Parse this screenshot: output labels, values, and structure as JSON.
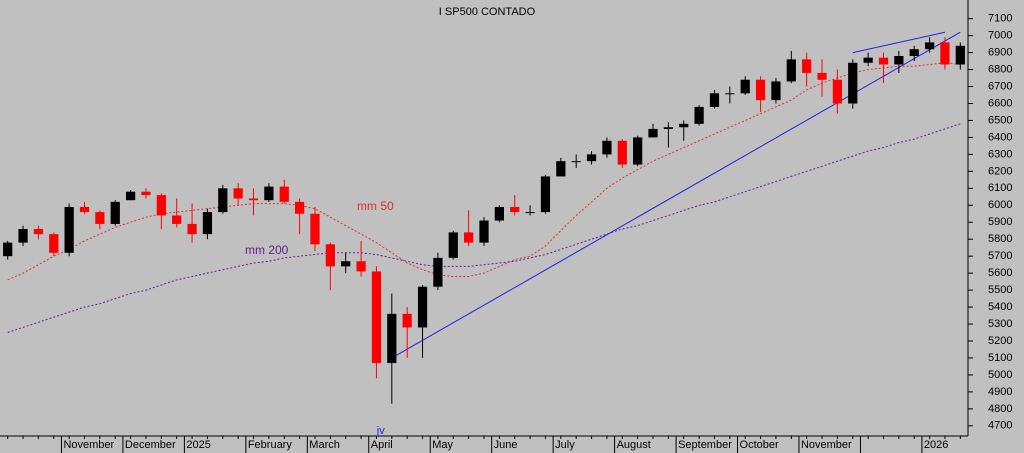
{
  "chart_data": {
    "type": "candlestick",
    "title": "I SP500 CONTADO",
    "ylim": [
      4640,
      7210
    ],
    "yticks": [
      4700,
      4800,
      4900,
      5000,
      5100,
      5200,
      5300,
      5400,
      5500,
      5600,
      5700,
      5800,
      5900,
      6000,
      6100,
      6200,
      6300,
      6400,
      6500,
      6600,
      6700,
      6800,
      6900,
      7000,
      7100
    ],
    "up_color": "#000000",
    "down_color": "#ff0000",
    "months": [
      {
        "label": null,
        "candles": [
          [
            5700,
            5790,
            5680,
            5780
          ],
          [
            5780,
            5880,
            5760,
            5860
          ],
          [
            5860,
            5880,
            5800,
            5830
          ],
          [
            5830,
            5840,
            5700,
            5720
          ]
        ]
      },
      {
        "label": "November",
        "candles": [
          [
            5720,
            6010,
            5700,
            5990
          ],
          [
            5990,
            6020,
            5950,
            5960
          ],
          [
            5960,
            5970,
            5860,
            5890
          ],
          [
            5890,
            6030,
            5880,
            6020
          ]
        ]
      },
      {
        "label": "December",
        "candles": [
          [
            6030,
            6090,
            6030,
            6080
          ],
          [
            6080,
            6100,
            6040,
            6060
          ],
          [
            6060,
            6070,
            5860,
            5940
          ],
          [
            5940,
            6040,
            5870,
            5890
          ]
        ]
      },
      {
        "label": "2025",
        "candles": [
          [
            5890,
            6010,
            5780,
            5830
          ],
          [
            5830,
            5980,
            5800,
            5960
          ],
          [
            5960,
            6120,
            5950,
            6100
          ],
          [
            6100,
            6130,
            6000,
            6040
          ]
        ]
      },
      {
        "label": "February",
        "candles": [
          [
            6040,
            6100,
            5940,
            6030
          ],
          [
            6030,
            6130,
            6020,
            6110
          ],
          [
            6110,
            6150,
            6010,
            6020
          ],
          [
            6020,
            6040,
            5830,
            5950
          ]
        ]
      },
      {
        "label": "March",
        "candles": [
          [
            5950,
            5990,
            5730,
            5770
          ],
          [
            5770,
            5780,
            5500,
            5640
          ],
          [
            5640,
            5720,
            5600,
            5670
          ],
          [
            5670,
            5790,
            5580,
            5610
          ]
        ]
      },
      {
        "label": "April",
        "candles": [
          [
            5610,
            5640,
            4980,
            5070
          ],
          [
            5070,
            5480,
            4830,
            5360
          ],
          [
            5360,
            5400,
            5100,
            5280
          ],
          [
            5280,
            5530,
            5100,
            5520
          ]
        ]
      },
      {
        "label": "May",
        "candles": [
          [
            5520,
            5720,
            5500,
            5690
          ],
          [
            5690,
            5850,
            5680,
            5840
          ],
          [
            5840,
            5970,
            5760,
            5780
          ],
          [
            5780,
            5930,
            5760,
            5910
          ]
        ]
      },
      {
        "label": "June",
        "candles": [
          [
            5910,
            6000,
            5900,
            5990
          ],
          [
            5990,
            6060,
            5940,
            5960
          ],
          [
            5960,
            6000,
            5940,
            5960
          ],
          [
            5960,
            6180,
            5950,
            6170
          ]
        ]
      },
      {
        "label": "July",
        "candles": [
          [
            6170,
            6280,
            6170,
            6260
          ],
          [
            6260,
            6300,
            6220,
            6260
          ],
          [
            6260,
            6320,
            6240,
            6300
          ],
          [
            6300,
            6400,
            6280,
            6380
          ]
        ]
      },
      {
        "label": "August",
        "candles": [
          [
            6380,
            6390,
            6220,
            6240
          ],
          [
            6240,
            6410,
            6230,
            6400
          ],
          [
            6400,
            6480,
            6400,
            6450
          ],
          [
            6450,
            6490,
            6340,
            6460
          ]
        ]
      },
      {
        "label": "September",
        "candles": [
          [
            6460,
            6500,
            6380,
            6480
          ],
          [
            6480,
            6590,
            6470,
            6580
          ],
          [
            6580,
            6680,
            6570,
            6660
          ],
          [
            6660,
            6700,
            6600,
            6660
          ]
        ]
      },
      {
        "label": "October",
        "candles": [
          [
            6660,
            6760,
            6650,
            6740
          ],
          [
            6740,
            6760,
            6550,
            6620
          ],
          [
            6620,
            6750,
            6600,
            6730
          ],
          [
            6730,
            6910,
            6720,
            6860
          ]
        ]
      },
      {
        "label": "November",
        "candles": [
          [
            6860,
            6900,
            6700,
            6780
          ],
          [
            6780,
            6860,
            6640,
            6740
          ],
          [
            6740,
            6800,
            6540,
            6600
          ],
          [
            6600,
            6860,
            6570,
            6840
          ]
        ]
      },
      {
        "label": null,
        "candles": [
          [
            6840,
            6900,
            6820,
            6870
          ],
          [
            6870,
            6900,
            6720,
            6830
          ],
          [
            6830,
            6910,
            6780,
            6880
          ],
          [
            6880,
            6940,
            6850,
            6920
          ]
        ]
      },
      {
        "label": "2026",
        "candles": [
          [
            6920,
            6990,
            6900,
            6960
          ],
          [
            6960,
            6990,
            6800,
            6830
          ],
          [
            6830,
            6960,
            6800,
            6940
          ]
        ]
      }
    ],
    "averages": [
      {
        "name": "mm 50",
        "color": "#e03030",
        "values": [
          5560,
          5600,
          5650,
          5700,
          5740,
          5790,
          5830,
          5870,
          5900,
          5930,
          5950,
          5960,
          5970,
          5980,
          5990,
          6000,
          6010,
          6010,
          6010,
          6000,
          5980,
          5930,
          5880,
          5830,
          5780,
          5720,
          5660,
          5620,
          5590,
          5580,
          5580,
          5600,
          5640,
          5680,
          5700,
          5760,
          5850,
          5940,
          6020,
          6100,
          6160,
          6210,
          6260,
          6300,
          6340,
          6380,
          6420,
          6460,
          6500,
          6540,
          6580,
          6620,
          6680,
          6720,
          6750,
          6780,
          6800,
          6810,
          6820,
          6820,
          6830,
          6840,
          6830
        ]
      },
      {
        "name": "mm 200",
        "color": "#602090",
        "values": [
          5250,
          5280,
          5310,
          5340,
          5370,
          5400,
          5420,
          5450,
          5480,
          5500,
          5530,
          5560,
          5580,
          5600,
          5620,
          5640,
          5660,
          5670,
          5690,
          5700,
          5710,
          5720,
          5720,
          5720,
          5710,
          5690,
          5670,
          5650,
          5640,
          5640,
          5640,
          5650,
          5660,
          5670,
          5690,
          5710,
          5740,
          5770,
          5800,
          5830,
          5860,
          5880,
          5910,
          5940,
          5970,
          6000,
          6020,
          6050,
          6080,
          6110,
          6140,
          6170,
          6200,
          6230,
          6260,
          6290,
          6320,
          6340,
          6370,
          6390,
          6420,
          6450,
          6480
        ]
      }
    ],
    "trendlines": [
      {
        "color": "#2020e0",
        "start_index": 25,
        "start_value": 5100,
        "end_index": 62,
        "end_value": 7020
      },
      {
        "color": "#2020e0",
        "start_index": 55,
        "start_value": 6900,
        "end_index": 61,
        "end_value": 7020
      }
    ],
    "annotation": "jv"
  }
}
